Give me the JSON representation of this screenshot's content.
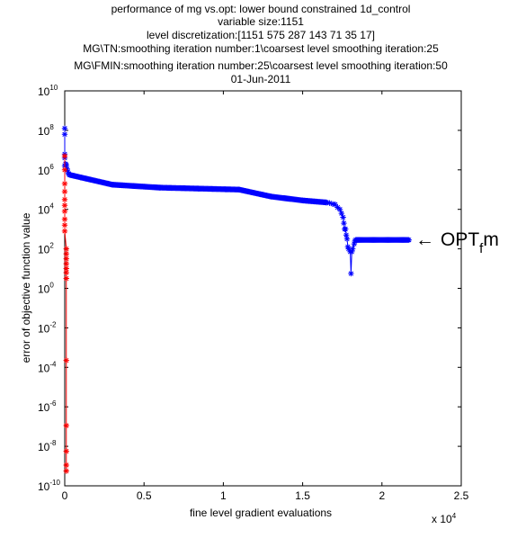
{
  "chart_data": {
    "type": "scatter",
    "title_lines": [
      "performance of mg vs.opt: lower bound constrained 1d_control",
      "variable size:1151",
      "level discretization:[1151 575 287 143 71 35 17]",
      "MG\\TN:smoothing iteration number:1\\coarsest level smoothing iteration:25",
      "MG\\FMIN:smoothing iteration number:25\\coarsest level smoothing iteration:50",
      "01-Jun-2011"
    ],
    "xlabel": "fine level gradient evaluations",
    "ylabel": "error of objective function value",
    "x_multiplier": "x 10",
    "x_multiplier_exp": "4",
    "xlim": [
      0,
      25000
    ],
    "ylim_exp": [
      -10,
      10
    ],
    "yscale": "log",
    "grid": false,
    "xticks": [
      0,
      5000,
      10000,
      15000,
      20000,
      25000
    ],
    "xtick_labels": [
      "0",
      "0.5",
      "1",
      "1.5",
      "2",
      "2.5"
    ],
    "yticks_exp": [
      -10,
      -8,
      -6,
      -4,
      -2,
      0,
      2,
      4,
      6,
      8,
      10
    ],
    "ytick_base": "10",
    "ytick_exps": [
      "-10",
      "-8",
      "-6",
      "-4",
      "-2",
      "0",
      "2",
      "4",
      "6",
      "8",
      "10"
    ],
    "series": [
      {
        "color": "#0000ff",
        "marker": "*",
        "dense_segments": [
          {
            "x_start": 300,
            "x_end": 1000,
            "log_start": 5.75,
            "log_end": 5.62
          },
          {
            "x_start": 1000,
            "x_end": 3000,
            "log_start": 5.62,
            "log_end": 5.25
          },
          {
            "x_start": 3000,
            "x_end": 6000,
            "log_start": 5.25,
            "log_end": 5.1
          },
          {
            "x_start": 6000,
            "x_end": 11000,
            "log_start": 5.1,
            "log_end": 5.0
          },
          {
            "x_start": 11000,
            "x_end": 13000,
            "log_start": 5.0,
            "log_end": 4.65
          },
          {
            "x_start": 13000,
            "x_end": 15000,
            "log_start": 4.65,
            "log_end": 4.45
          },
          {
            "x_start": 15000,
            "x_end": 16500,
            "log_start": 4.45,
            "log_end": 4.35
          },
          {
            "x_start": 18400,
            "x_end": 21700,
            "log_start": 2.45,
            "log_end": 2.45
          }
        ],
        "points": [
          {
            "x": 0,
            "log10y": 8.1
          },
          {
            "x": 0,
            "log10y": 7.8
          },
          {
            "x": 0,
            "log10y": 6.8
          },
          {
            "x": 0,
            "log10y": 6.6
          },
          {
            "x": 0,
            "log10y": 6.2
          },
          {
            "x": 50,
            "log10y": 6.3
          },
          {
            "x": 100,
            "log10y": 6.25
          },
          {
            "x": 150,
            "log10y": 6.05
          },
          {
            "x": 200,
            "log10y": 5.9
          },
          {
            "x": 250,
            "log10y": 5.8
          },
          {
            "x": 16500,
            "log10y": 4.35
          },
          {
            "x": 16700,
            "log10y": 4.32
          },
          {
            "x": 16900,
            "log10y": 4.27
          },
          {
            "x": 17050,
            "log10y": 4.25
          },
          {
            "x": 17200,
            "log10y": 4.1
          },
          {
            "x": 17350,
            "log10y": 4.0
          },
          {
            "x": 17450,
            "log10y": 3.8
          },
          {
            "x": 17550,
            "log10y": 3.6
          },
          {
            "x": 17600,
            "log10y": 3.3
          },
          {
            "x": 17650,
            "log10y": 3.0
          },
          {
            "x": 17700,
            "log10y": 3.0
          },
          {
            "x": 17750,
            "log10y": 2.7
          },
          {
            "x": 17800,
            "log10y": 2.5
          },
          {
            "x": 17850,
            "log10y": 2.1
          },
          {
            "x": 17900,
            "log10y": 2.0
          },
          {
            "x": 18000,
            "log10y": 1.85
          },
          {
            "x": 18050,
            "log10y": 0.75
          },
          {
            "x": 18100,
            "log10y": 1.85
          },
          {
            "x": 18150,
            "log10y": 2.0
          },
          {
            "x": 18250,
            "log10y": 2.25
          },
          {
            "x": 18300,
            "log10y": 2.4
          },
          {
            "x": 18350,
            "log10y": 2.45
          }
        ]
      },
      {
        "color": "#ff0000",
        "marker": "*",
        "points": [
          {
            "x": 0,
            "log10y": 6.7
          },
          {
            "x": 0,
            "log10y": 6.0
          },
          {
            "x": 0,
            "log10y": 5.3
          },
          {
            "x": 0,
            "log10y": 4.9
          },
          {
            "x": 0,
            "log10y": 4.5
          },
          {
            "x": 0,
            "log10y": 4.2
          },
          {
            "x": 0,
            "log10y": 3.9
          },
          {
            "x": 0,
            "log10y": 3.5
          },
          {
            "x": 0,
            "log10y": 3.2
          },
          {
            "x": 0,
            "log10y": 2.9
          },
          {
            "x": 100,
            "log10y": 2.0
          },
          {
            "x": 100,
            "log10y": 1.75
          },
          {
            "x": 100,
            "log10y": 1.5
          },
          {
            "x": 100,
            "log10y": 1.25
          },
          {
            "x": 100,
            "log10y": 1.0
          },
          {
            "x": 100,
            "log10y": 0.8
          },
          {
            "x": 100,
            "log10y": 0.5
          },
          {
            "x": 100,
            "log10y": -3.65
          },
          {
            "x": 100,
            "log10y": -6.95
          },
          {
            "x": 100,
            "log10y": -8.25
          },
          {
            "x": 100,
            "log10y": -8.95
          },
          {
            "x": 100,
            "log10y": -9.25
          }
        ]
      }
    ],
    "annotation": {
      "arrow": "←",
      "text_main": "OPT",
      "text_sub": "f",
      "text_tail": "m"
    }
  }
}
